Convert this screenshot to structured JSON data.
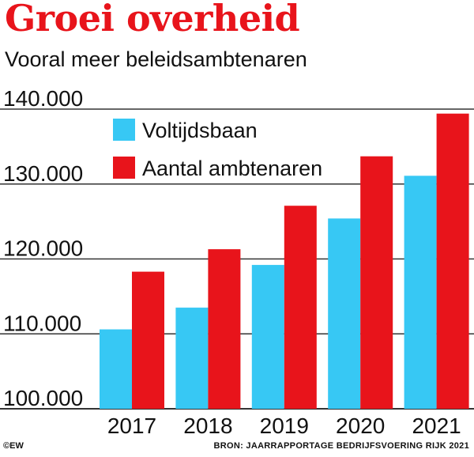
{
  "header": {
    "title": "Groei overheid",
    "subtitle": "Vooral meer beleidsambtenaren"
  },
  "footer": {
    "copyright": "©EW",
    "source": "BRON:  JAARRAPPORTAGE BEDRIJFSVOERING RIJK 2021"
  },
  "colors": {
    "title": "#e8141b",
    "voltijdsbaan": "#37c8f4",
    "ambtenaren": "#e8141b",
    "grid": "#333333"
  },
  "chart_data": {
    "type": "bar",
    "title": "Groei overheid",
    "subtitle": "Vooral meer beleidsambtenaren",
    "categories": [
      "2017",
      "2018",
      "2019",
      "2020",
      "2021"
    ],
    "series": [
      {
        "name": "Voltijdsbaan",
        "color": "#37c8f4",
        "values": [
          110600,
          113500,
          119200,
          125400,
          131100
        ]
      },
      {
        "name": "Aantal ambtenaren",
        "color": "#e8141b",
        "values": [
          118300,
          121300,
          127100,
          133700,
          139400
        ]
      }
    ],
    "yticks": [
      "100.000",
      "110.000",
      "120.000",
      "130.000",
      "140.000"
    ],
    "ylim": [
      100000,
      140000
    ],
    "grid": true,
    "legend_position": "top-left"
  }
}
